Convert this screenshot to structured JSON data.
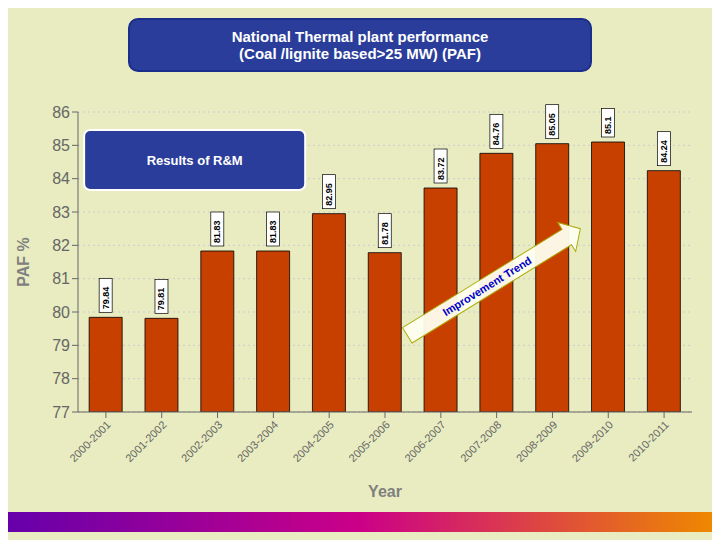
{
  "chart_data": {
    "type": "bar",
    "title": "National Thermal plant performance\n(Coal /lignite based>25 MW) (PAF)",
    "categories": [
      "2000-2001",
      "2001-2002",
      "2002-2003",
      "2003-2004",
      "2004-2005",
      "2005-2006",
      "2006-2007",
      "2007-2008",
      "2008-2009",
      "2009-2010",
      "2010-2011"
    ],
    "values": [
      79.84,
      79.81,
      81.83,
      81.83,
      82.95,
      81.78,
      83.72,
      84.76,
      85.05,
      85.1,
      84.24
    ],
    "color": "#C84000",
    "xlabel": "Year",
    "ylabel": "PAF %",
    "ylim": [
      77,
      86
    ],
    "yticks": [
      77,
      78,
      79,
      80,
      81,
      82,
      83,
      84,
      85,
      86
    ],
    "grid": true,
    "data_labels": true,
    "annotations": [
      "Results of R&M",
      "Improvement Trend"
    ]
  }
}
